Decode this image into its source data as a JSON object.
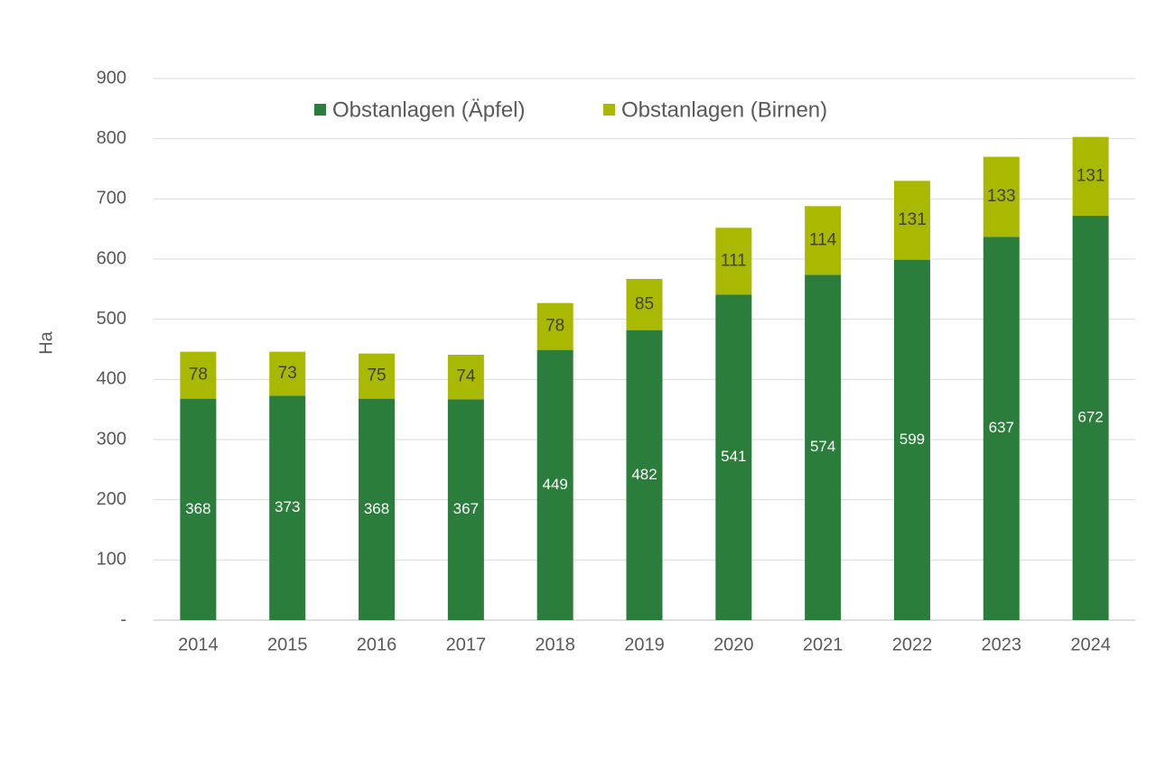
{
  "chart_data": {
    "type": "stacked_bar",
    "y_label": "Ha",
    "categories": [
      "2014",
      "2015",
      "2016",
      "2017",
      "2018",
      "2019",
      "2020",
      "2021",
      "2022",
      "2023",
      "2024"
    ],
    "series": [
      {
        "name": "Obstanlagen (Äpfel)",
        "color": "#2a7d3a",
        "values": [
          368,
          373,
          368,
          367,
          449,
          482,
          541,
          574,
          599,
          637,
          672
        ]
      },
      {
        "name": "Obstanlagen (Birnen)",
        "color": "#a9b800",
        "values": [
          78,
          73,
          75,
          74,
          78,
          85,
          111,
          114,
          131,
          133,
          131
        ]
      }
    ],
    "ylim": [
      0,
      900
    ],
    "yticks": [
      {
        "value": 0,
        "label": "-"
      },
      100,
      200,
      300,
      400,
      500,
      600,
      700,
      800,
      900
    ],
    "grid": true,
    "legend": "top"
  }
}
